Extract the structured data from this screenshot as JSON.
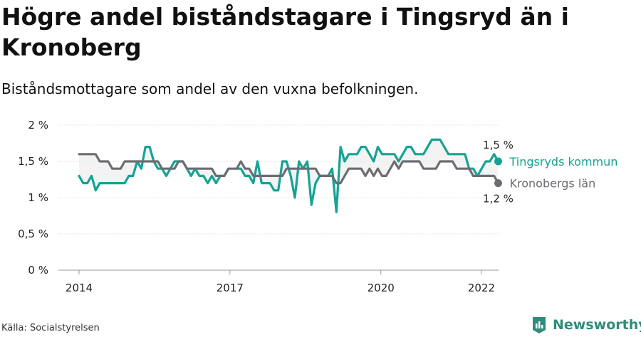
{
  "title": "Högre andel biståndstagare i Tingsryd än i Kronoberg",
  "subtitle": "Biståndsmottagare som andel av den vuxna befolkningen.",
  "source": "Källa: Socialstyrelsen",
  "brand": "Newsworthy",
  "chart_data": {
    "type": "line",
    "x_start": "2014-01",
    "x_end": "2022-05",
    "x_ticks": [
      {
        "year": 2014,
        "label": "2014"
      },
      {
        "year": 2017,
        "label": "2017"
      },
      {
        "year": 2020,
        "label": "2020"
      },
      {
        "year": 2022,
        "label": "2022"
      }
    ],
    "y_ticks": [
      {
        "value": 0,
        "label": "0 %"
      },
      {
        "value": 0.5,
        "label": "0,5 %"
      },
      {
        "value": 1,
        "label": "1 %"
      },
      {
        "value": 1.5,
        "label": "1,5 %"
      },
      {
        "value": 2,
        "label": "2 %"
      }
    ],
    "ylim": [
      0,
      2
    ],
    "grid": true,
    "series": [
      {
        "name": "Tingsryds kommun",
        "color": "#16a394",
        "end_label": "1,5 %",
        "values": [
          1.3,
          1.2,
          1.2,
          1.3,
          1.1,
          1.2,
          1.2,
          1.2,
          1.2,
          1.2,
          1.2,
          1.2,
          1.3,
          1.3,
          1.5,
          1.4,
          1.7,
          1.7,
          1.5,
          1.4,
          1.4,
          1.3,
          1.4,
          1.5,
          1.5,
          1.5,
          1.4,
          1.3,
          1.4,
          1.3,
          1.3,
          1.2,
          1.3,
          1.2,
          1.3,
          1.3,
          1.4,
          null,
          1.4,
          1.4,
          1.3,
          1.3,
          1.2,
          1.5,
          1.2,
          1.2,
          1.2,
          1.1,
          1.1,
          1.5,
          1.5,
          1.3,
          1.0,
          1.5,
          1.4,
          1.5,
          0.9,
          1.2,
          1.3,
          1.3,
          1.3,
          1.4,
          0.8,
          1.7,
          1.5,
          1.6,
          1.6,
          1.6,
          1.7,
          1.7,
          1.6,
          1.5,
          1.7,
          1.6,
          1.6,
          1.6,
          1.6,
          1.5,
          1.6,
          1.7,
          1.7,
          1.6,
          1.6,
          1.6,
          1.7,
          1.8,
          1.8,
          1.8,
          1.7,
          1.6,
          1.6,
          1.6,
          1.6,
          1.6,
          1.4,
          1.4,
          1.3,
          1.4,
          1.5,
          1.5,
          1.6,
          1.5
        ]
      },
      {
        "name": "Kronobergs län",
        "color": "#6c6c73",
        "end_label": "1,2 %",
        "values": [
          1.6,
          1.6,
          1.6,
          1.6,
          1.6,
          1.5,
          1.5,
          1.5,
          1.4,
          1.4,
          1.4,
          1.5,
          1.5,
          1.5,
          1.5,
          1.5,
          1.5,
          1.5,
          1.5,
          1.5,
          1.4,
          1.4,
          1.4,
          1.4,
          1.5,
          1.5,
          1.4,
          1.4,
          1.4,
          1.4,
          1.4,
          1.4,
          1.4,
          1.3,
          1.3,
          1.3,
          1.4,
          1.4,
          1.4,
          1.5,
          1.4,
          1.4,
          1.3,
          1.3,
          1.3,
          1.3,
          1.3,
          1.3,
          1.3,
          1.3,
          1.4,
          1.4,
          1.4,
          1.4,
          1.4,
          1.4,
          1.4,
          1.4,
          1.3,
          1.3,
          1.3,
          1.3,
          1.2,
          1.2,
          1.3,
          1.4,
          1.4,
          1.4,
          1.4,
          1.3,
          1.4,
          1.3,
          1.4,
          1.3,
          1.3,
          1.4,
          1.5,
          1.4,
          1.5,
          1.5,
          1.5,
          1.5,
          1.5,
          1.4,
          1.4,
          1.4,
          1.4,
          1.5,
          1.5,
          1.5,
          1.5,
          1.4,
          1.4,
          1.4,
          1.4,
          1.3,
          1.3,
          1.3,
          1.3,
          1.3,
          1.3,
          1.2
        ]
      }
    ]
  }
}
